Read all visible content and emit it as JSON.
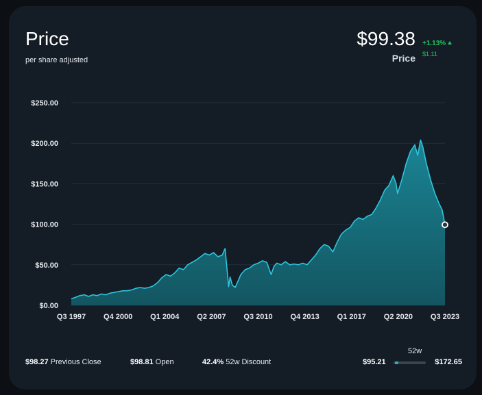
{
  "header": {
    "title": "Price",
    "subtitle": "per share adjusted",
    "price": "$99.38",
    "price_label": "Price",
    "change_percent": "+1.13%",
    "change_abs": "$1.11"
  },
  "colors": {
    "background": "#141d26",
    "line": "#2ec4dc",
    "area_top": "#1b8a9a",
    "area_bottom": "#135c68",
    "positive": "#22c55e"
  },
  "stats": [
    {
      "value": "$98.27",
      "label": "Previous Close"
    },
    {
      "value": "$98.81",
      "label": "Open"
    },
    {
      "value": "42.4%",
      "label": "52w Discount"
    }
  ],
  "range52": {
    "title": "52w",
    "low": "$95.21",
    "high": "$172.65",
    "position": 0.05
  },
  "chart_data": {
    "type": "area",
    "title": "Price",
    "xlabel": "",
    "ylabel": "",
    "ylim": [
      0,
      250
    ],
    "yticks": [
      0,
      50,
      100,
      150,
      200,
      250
    ],
    "ytick_labels": [
      "$0.00",
      "$50.00",
      "$100.00",
      "$150.00",
      "$200.00",
      "$250.00"
    ],
    "xtick_labels": [
      "Q3 1997",
      "Q4 2000",
      "Q1 2004",
      "Q2 2007",
      "Q3 2010",
      "Q4 2013",
      "Q1 2017",
      "Q2 2020",
      "Q3 2023"
    ],
    "xtick_values": [
      1997.5,
      2000.75,
      2004.0,
      2007.25,
      2010.5,
      2013.75,
      2017.0,
      2020.25,
      2023.5
    ],
    "xlim": [
      1997.5,
      2023.5
    ],
    "grid": true,
    "series": [
      {
        "x": [
          1997.5,
          1997.8,
          1998.1,
          1998.4,
          1998.7,
          1999.0,
          1999.3,
          1999.6,
          1999.9,
          2000.2,
          2000.5,
          2000.8,
          2001.1,
          2001.4,
          2001.7,
          2002.0,
          2002.3,
          2002.6,
          2002.9,
          2003.2,
          2003.5,
          2003.8,
          2004.1,
          2004.4,
          2004.7,
          2005.0,
          2005.3,
          2005.6,
          2005.9,
          2006.2,
          2006.5,
          2006.8,
          2007.1,
          2007.4,
          2007.7,
          2008.0,
          2008.2,
          2008.45,
          2008.55,
          2008.7,
          2008.9,
          2009.1,
          2009.3,
          2009.6,
          2009.9,
          2010.2,
          2010.5,
          2010.8,
          2011.1,
          2011.4,
          2011.6,
          2011.8,
          2012.1,
          2012.4,
          2012.7,
          2013.0,
          2013.3,
          2013.6,
          2013.9,
          2014.2,
          2014.5,
          2014.8,
          2015.1,
          2015.4,
          2015.7,
          2016.0,
          2016.3,
          2016.6,
          2016.9,
          2017.2,
          2017.5,
          2017.8,
          2018.1,
          2018.4,
          2018.7,
          2019.0,
          2019.3,
          2019.6,
          2019.9,
          2020.1,
          2020.2,
          2020.5,
          2020.8,
          2021.1,
          2021.4,
          2021.6,
          2021.8,
          2021.95,
          2022.2,
          2022.5,
          2022.8,
          2023.1,
          2023.3,
          2023.5
        ],
        "values": [
          8,
          10,
          12,
          13,
          11,
          13,
          12,
          14,
          13,
          15,
          16,
          17,
          18,
          18,
          19,
          21,
          22,
          21,
          22,
          24,
          28,
          34,
          38,
          36,
          40,
          46,
          44,
          50,
          53,
          56,
          60,
          64,
          62,
          65,
          60,
          62,
          70,
          23,
          35,
          25,
          22,
          30,
          38,
          44,
          46,
          50,
          52,
          55,
          53,
          38,
          48,
          52,
          50,
          54,
          50,
          51,
          50,
          52,
          50,
          56,
          62,
          70,
          75,
          73,
          66,
          78,
          88,
          93,
          96,
          104,
          108,
          106,
          110,
          112,
          120,
          130,
          142,
          148,
          160,
          150,
          138,
          155,
          175,
          190,
          198,
          185,
          204,
          196,
          175,
          155,
          138,
          125,
          118,
          99.38
        ]
      }
    ]
  }
}
